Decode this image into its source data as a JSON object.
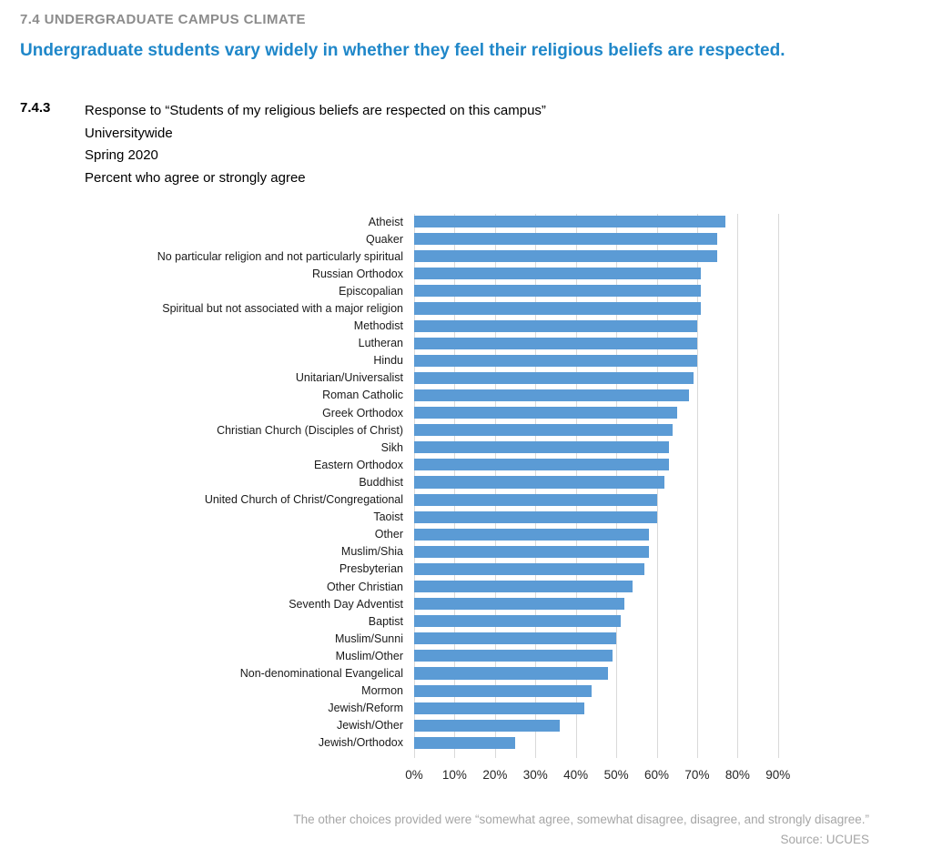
{
  "page": {
    "section_label": "7.4 UNDERGRADUATE CAMPUS CLIMATE",
    "headline": "Undergraduate students vary widely in whether they feel their religious beliefs are respected."
  },
  "figure": {
    "number": "7.4.3",
    "caption_line1": "Response to “Students of my religious beliefs are respected on this campus”",
    "caption_line2": "Universitywide",
    "caption_line3": "Spring 2020",
    "caption_line4": "Percent who agree or strongly agree"
  },
  "chart_data": {
    "type": "bar",
    "orientation": "horizontal",
    "title": "Response to “Students of my religious beliefs are respected on this campus”, Universitywide, Spring 2020, Percent who agree or strongly agree",
    "categories": [
      "Atheist",
      "Quaker",
      "No particular religion and not particularly spiritual",
      "Russian Orthodox",
      "Episcopalian",
      "Spiritual but not associated with a major religion",
      "Methodist",
      "Lutheran",
      "Hindu",
      "Unitarian/Universalist",
      "Roman Catholic",
      "Greek Orthodox",
      "Christian Church (Disciples of Christ)",
      "Sikh",
      "Eastern Orthodox",
      "Buddhist",
      "United Church of Christ/Congregational",
      "Taoist",
      "Other",
      "Muslim/Shia",
      "Presbyterian",
      "Other Christian",
      "Seventh Day Adventist",
      "Baptist",
      "Muslim/Sunni",
      "Muslim/Other",
      "Non-denominational Evangelical",
      "Mormon",
      "Jewish/Reform",
      "Jewish/Other",
      "Jewish/Orthodox"
    ],
    "values": [
      77,
      75,
      75,
      71,
      71,
      71,
      70,
      70,
      70,
      69,
      68,
      65,
      64,
      63,
      63,
      62,
      60,
      60,
      58,
      58,
      57,
      54,
      52,
      51,
      50,
      49,
      48,
      44,
      42,
      36,
      25
    ],
    "x_ticks": [
      "0%",
      "10%",
      "20%",
      "30%",
      "40%",
      "50%",
      "60%",
      "70%",
      "80%",
      "90%"
    ],
    "x_tick_values": [
      0,
      10,
      20,
      30,
      40,
      50,
      60,
      70,
      80,
      90
    ],
    "xlim": [
      0,
      95
    ],
    "grid": true,
    "legend": false,
    "bar_color": "#5b9bd5",
    "gridline_color": "#d9d9d9"
  },
  "footnote": {
    "line1": "The other choices provided were “somewhat agree, somewhat disagree, disagree, and strongly disagree.”",
    "line2": "Source: UCUES"
  },
  "colors": {
    "headline_blue": "#1f87c9",
    "section_gray": "#8c8c8c",
    "footnote_gray": "#a6a6a6"
  }
}
